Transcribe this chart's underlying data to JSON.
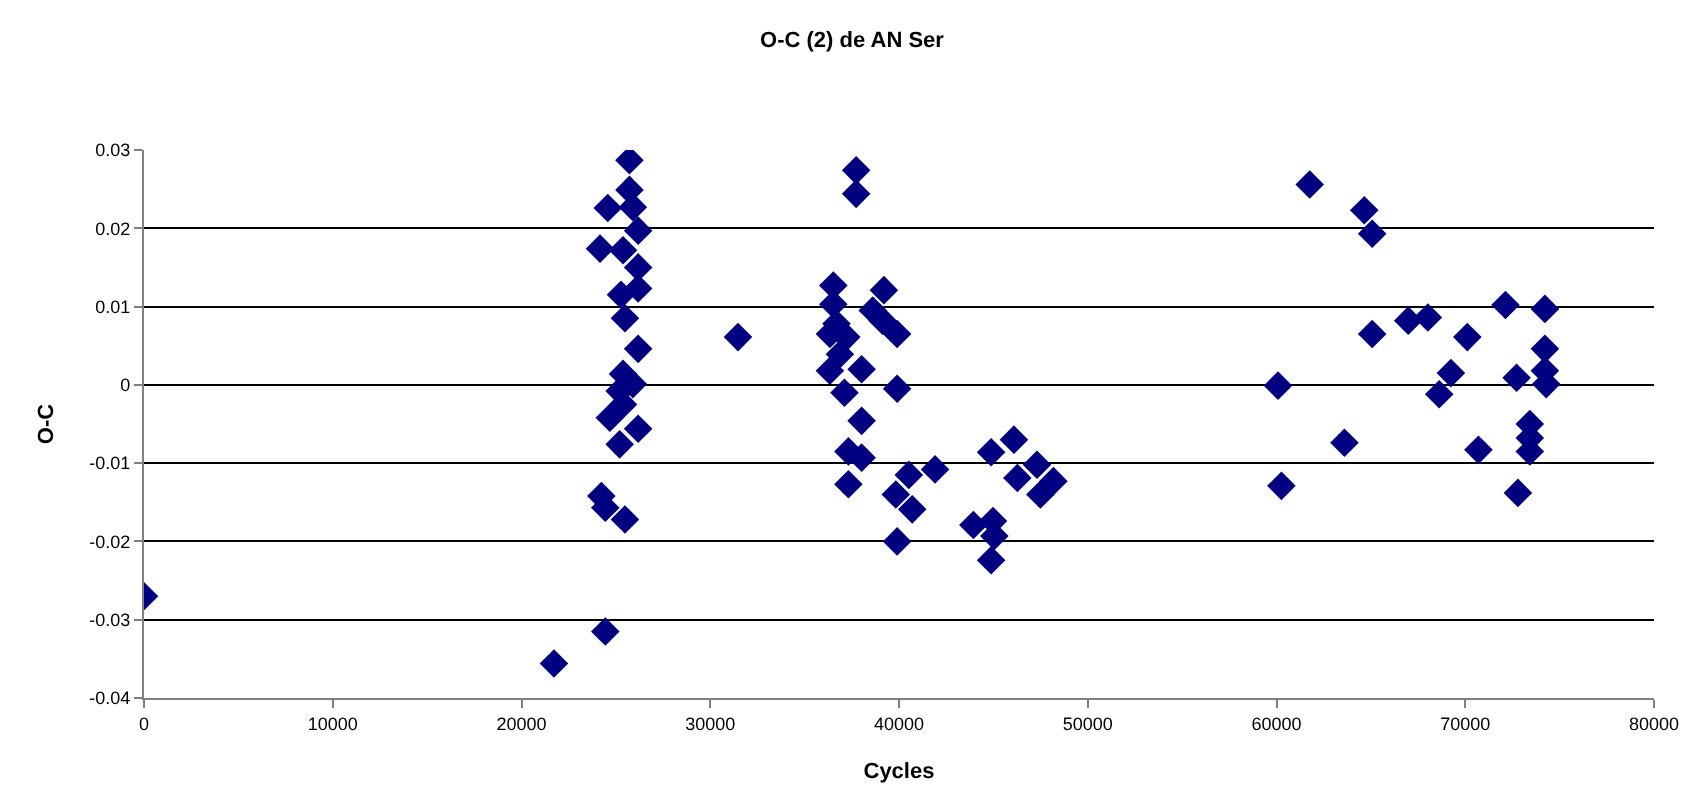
{
  "chart_data": {
    "type": "scatter",
    "title": "O-C (2) de AN Ser",
    "xlabel": "Cycles",
    "ylabel": "O-C",
    "x": [
      0,
      21720,
      24440,
      24230,
      24440,
      25480,
      25200,
      25380,
      24680,
      26180,
      25200,
      25900,
      25380,
      26180,
      25480,
      25270,
      26180,
      26180,
      25380,
      24160,
      26180,
      25900,
      24570,
      25720,
      25720,
      31470,
      36340,
      36520,
      36520,
      36690,
      36340,
      37210,
      36870,
      38020,
      37110,
      37730,
      37730,
      39200,
      38610,
      39130,
      39900,
      39900,
      38020,
      37320,
      38020,
      37320,
      40520,
      41910,
      39830,
      40700,
      39900,
      44880,
      46090,
      46270,
      47310,
      48180,
      47490,
      43940,
      44980,
      45050,
      44880,
      60080,
      60260,
      61760,
      63600,
      64650,
      65070,
      65070,
      66980,
      68020,
      70110,
      69240,
      68620,
      70700,
      72130,
      72720,
      72790,
      73420,
      73420,
      73420,
      74220,
      74220,
      74220,
      74290
    ],
    "series": [
      {
        "color": "#000080",
        "values": [
          -0.027,
          -0.0356,
          -0.0315,
          -0.0142,
          -0.0157,
          -0.0172,
          -0.0076,
          -0.0025,
          -0.0042,
          -0.0056,
          -0.0008,
          0.0001,
          0.0014,
          0.0046,
          0.0085,
          0.0115,
          0.0123,
          0.015,
          0.0172,
          0.0174,
          0.0197,
          0.0227,
          0.0226,
          0.0249,
          0.0287,
          0.0061,
          0.0065,
          0.0127,
          0.0103,
          0.0078,
          0.0018,
          0.0061,
          0.0039,
          0.002,
          -0.001,
          0.0274,
          0.0244,
          0.0121,
          0.0095,
          0.0082,
          0.0065,
          -0.0005,
          -0.0046,
          -0.0085,
          -0.0093,
          -0.0127,
          -0.0115,
          -0.0108,
          -0.014,
          -0.0159,
          -0.02,
          -0.0086,
          -0.007,
          -0.0119,
          -0.0102,
          -0.0123,
          -0.014,
          -0.0179,
          -0.0174,
          -0.0193,
          -0.0224,
          -0.0001,
          -0.0129,
          0.0256,
          -0.0074,
          0.0223,
          0.0193,
          0.0065,
          0.0082,
          0.0086,
          0.0061,
          0.0015,
          -0.0012,
          -0.0083,
          0.0102,
          0.0009,
          -0.0138,
          -0.005,
          -0.0068,
          -0.0085,
          0.0097,
          0.0046,
          0.0018,
          0.0001
        ]
      }
    ],
    "marker": "diamond",
    "grid": "y",
    "xlim": [
      0,
      80000
    ],
    "xticks": [
      0,
      10000,
      20000,
      30000,
      40000,
      50000,
      60000,
      70000,
      80000
    ],
    "ylim": [
      -0.04,
      0.03
    ],
    "yticks": [
      -0.04,
      -0.03,
      -0.02,
      -0.01,
      0,
      0.01,
      0.02,
      0.03
    ]
  }
}
